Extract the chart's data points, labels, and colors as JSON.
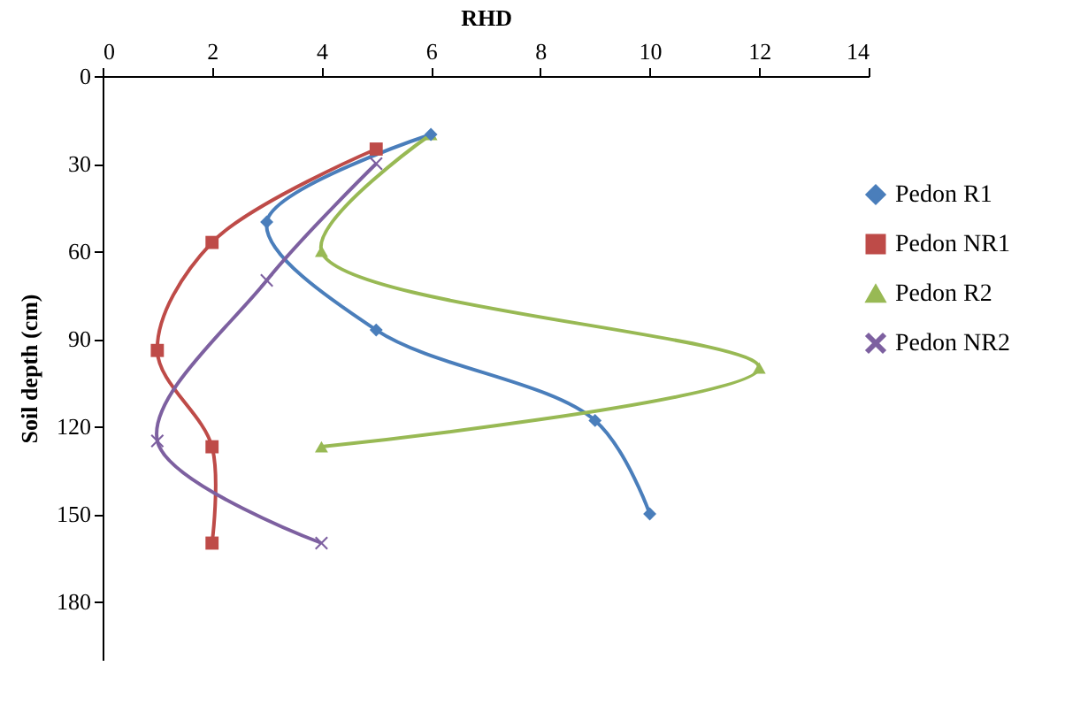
{
  "chart_data": {
    "type": "line",
    "xlabel": "RHD",
    "ylabel": "Soil depth (cm)",
    "xlim": [
      0,
      14
    ],
    "xticks": [
      0,
      2,
      4,
      6,
      8,
      10,
      12,
      14
    ],
    "ylim": [
      200,
      0
    ],
    "yticks": [
      0,
      30,
      60,
      90,
      120,
      150,
      180
    ],
    "grid": false,
    "legend": "right",
    "series": [
      {
        "name": "Pedon R1",
        "color": "#4a7ebb",
        "marker": "diamond",
        "x": [
          6,
          3,
          5,
          9,
          10
        ],
        "values": [
          20,
          50,
          87,
          118,
          150
        ]
      },
      {
        "name": "Pedon NR1",
        "color": "#be4b48",
        "marker": "square",
        "x": [
          5,
          2,
          1,
          2,
          2
        ],
        "values": [
          25,
          57,
          94,
          127,
          160
        ]
      },
      {
        "name": "Pedon R2",
        "color": "#98b954",
        "marker": "triangle",
        "x": [
          6,
          4,
          12,
          4
        ],
        "values": [
          20,
          60,
          100,
          127
        ]
      },
      {
        "name": "Pedon NR2",
        "color": "#7d60a0",
        "marker": "cross",
        "x": [
          5,
          3,
          1,
          4
        ],
        "values": [
          30,
          70,
          125,
          160
        ]
      }
    ]
  }
}
